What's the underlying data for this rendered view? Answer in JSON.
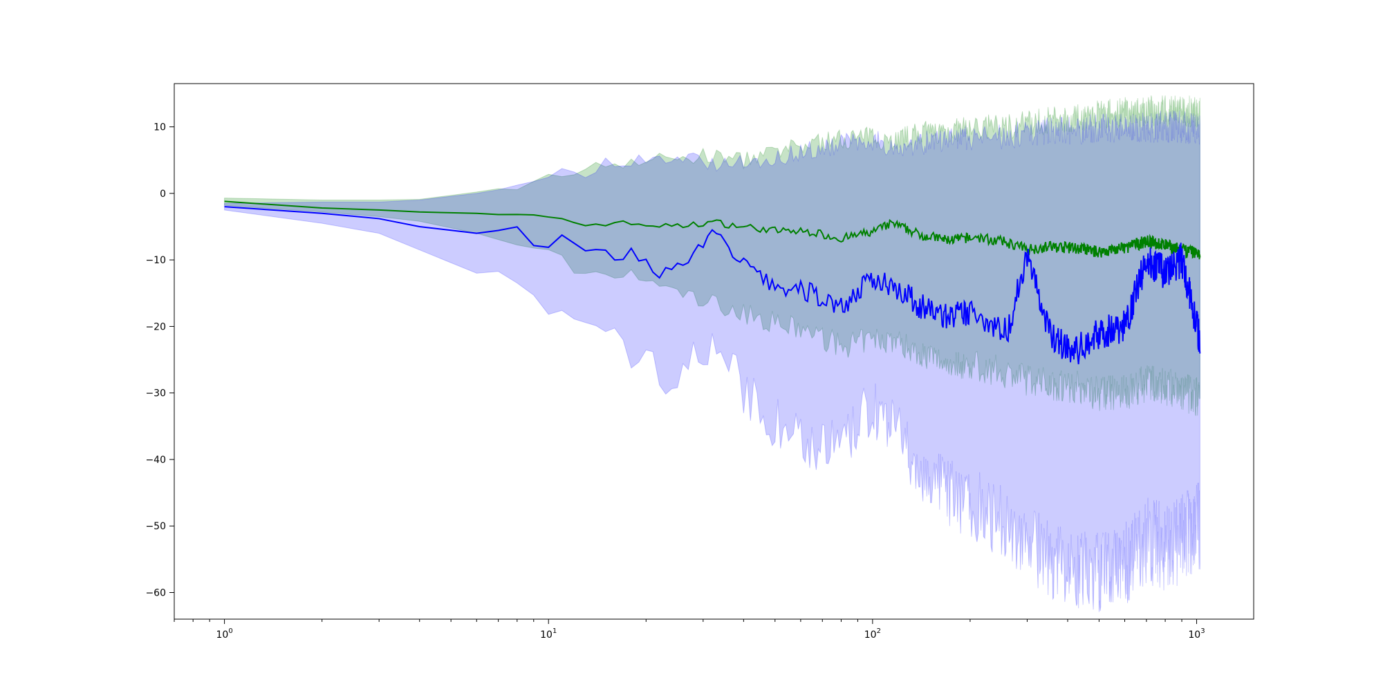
{
  "chart_data": {
    "type": "line",
    "title": "",
    "xlabel": "",
    "ylabel": "",
    "xscale": "log",
    "xlim": [
      0.7,
      1500
    ],
    "ylim": [
      -64,
      16.5
    ],
    "grid": false,
    "legend": "none",
    "x_ticks": [
      {
        "value": 1,
        "base": "10",
        "exp": "0"
      },
      {
        "value": 10,
        "base": "10",
        "exp": "1"
      },
      {
        "value": 100,
        "base": "10",
        "exp": "2"
      },
      {
        "value": 1000,
        "base": "10",
        "exp": "3"
      }
    ],
    "y_ticks": [
      {
        "value": 10,
        "label": "10"
      },
      {
        "value": 0,
        "label": "0"
      },
      {
        "value": -10,
        "label": "−10"
      },
      {
        "value": -20,
        "label": "−20"
      },
      {
        "value": -30,
        "label": "−30"
      },
      {
        "value": -40,
        "label": "−40"
      },
      {
        "value": -50,
        "label": "−50"
      },
      {
        "value": -60,
        "label": "−60"
      }
    ],
    "series": [
      {
        "color": "#008000",
        "band_color": "#008000",
        "band_opacity": 0.22,
        "x": [
          1,
          2,
          3,
          4,
          6,
          9,
          11,
          13,
          16,
          20,
          25,
          32,
          40,
          50,
          65,
          80,
          100,
          115,
          140,
          170,
          210,
          260,
          300,
          350,
          420,
          500,
          600,
          700,
          800,
          900,
          1024
        ],
        "mean": [
          -1.2,
          -2.2,
          -2.5,
          -2.8,
          -3.0,
          -3.5,
          -3.7,
          -4.8,
          -4.4,
          -4.7,
          -5.0,
          -4.3,
          -5.0,
          -5.6,
          -5.8,
          -6.8,
          -5.8,
          -4.5,
          -6.2,
          -7.0,
          -6.6,
          -7.4,
          -8.4,
          -8.0,
          -8.2,
          -8.8,
          -8.2,
          -7.2,
          -7.8,
          -8.6,
          -9.0
        ],
        "upper": [
          -0.7,
          -1.0,
          -1.0,
          -0.9,
          0.2,
          1.5,
          2.8,
          4.0,
          4.6,
          5.0,
          5.3,
          5.6,
          5.0,
          6.0,
          7.5,
          8.2,
          8.5,
          8.0,
          9.0,
          9.4,
          9.8,
          10.2,
          10.5,
          11.0,
          11.3,
          11.8,
          12.2,
          12.4,
          12.5,
          12.4,
          12.2
        ],
        "lower": [
          -1.8,
          -2.8,
          -3.5,
          -4.2,
          -6.0,
          -8.5,
          -10.0,
          -13.0,
          -12.0,
          -13.0,
          -15.0,
          -16.5,
          -18.0,
          -19.5,
          -21.0,
          -23.0,
          -22.0,
          -22.0,
          -24.0,
          -25.5,
          -26.0,
          -27.0,
          -28.0,
          -28.5,
          -29.0,
          -30.0,
          -30.0,
          -28.5,
          -29.0,
          -30.0,
          -30.5
        ]
      },
      {
        "color": "#0000ff",
        "band_color": "#0000ff",
        "band_opacity": 0.2,
        "x": [
          1,
          2,
          3,
          4,
          6,
          8,
          9,
          11,
          13,
          15,
          18,
          20,
          23,
          25,
          28,
          33,
          40,
          50,
          65,
          80,
          100,
          115,
          140,
          170,
          210,
          260,
          300,
          350,
          420,
          500,
          600,
          700,
          800,
          900,
          1024
        ],
        "mean": [
          -2.0,
          -3.0,
          -3.8,
          -5.0,
          -6.0,
          -5.2,
          -7.5,
          -7.2,
          -9.0,
          -9.0,
          -9.2,
          -10.5,
          -12.0,
          -10.5,
          -9.0,
          -6.0,
          -11.0,
          -14.0,
          -15.0,
          -17.0,
          -13.0,
          -13.5,
          -17.0,
          -18.5,
          -18.0,
          -21.0,
          -9.0,
          -21.0,
          -24.0,
          -21.0,
          -20.0,
          -10.0,
          -12.0,
          -10.0,
          -22.0
        ],
        "upper": [
          -1.5,
          -1.3,
          -1.3,
          -1.0,
          0.0,
          1.0,
          1.5,
          3.0,
          2.5,
          4.5,
          4.8,
          5.0,
          4.5,
          5.0,
          5.0,
          4.5,
          4.5,
          5.5,
          6.5,
          7.5,
          8.0,
          7.0,
          7.5,
          8.0,
          8.5,
          8.5,
          9.0,
          9.5,
          9.5,
          9.8,
          10.0,
          10.0,
          10.0,
          10.0,
          9.5
        ],
        "lower": [
          -2.5,
          -4.5,
          -6.0,
          -8.5,
          -12.0,
          -11.5,
          -16.5,
          -17.5,
          -20.5,
          -22.0,
          -23.5,
          -24.5,
          -28.0,
          -26.0,
          -25.0,
          -22.0,
          -30.0,
          -34.5,
          -37.5,
          -38.5,
          -32.0,
          -35.0,
          -42.0,
          -45.0,
          -47.0,
          -50.0,
          -52.0,
          -55.0,
          -57.0,
          -57.0,
          -56.0,
          -52.0,
          -53.0,
          -52.0,
          -50.0
        ]
      }
    ]
  }
}
